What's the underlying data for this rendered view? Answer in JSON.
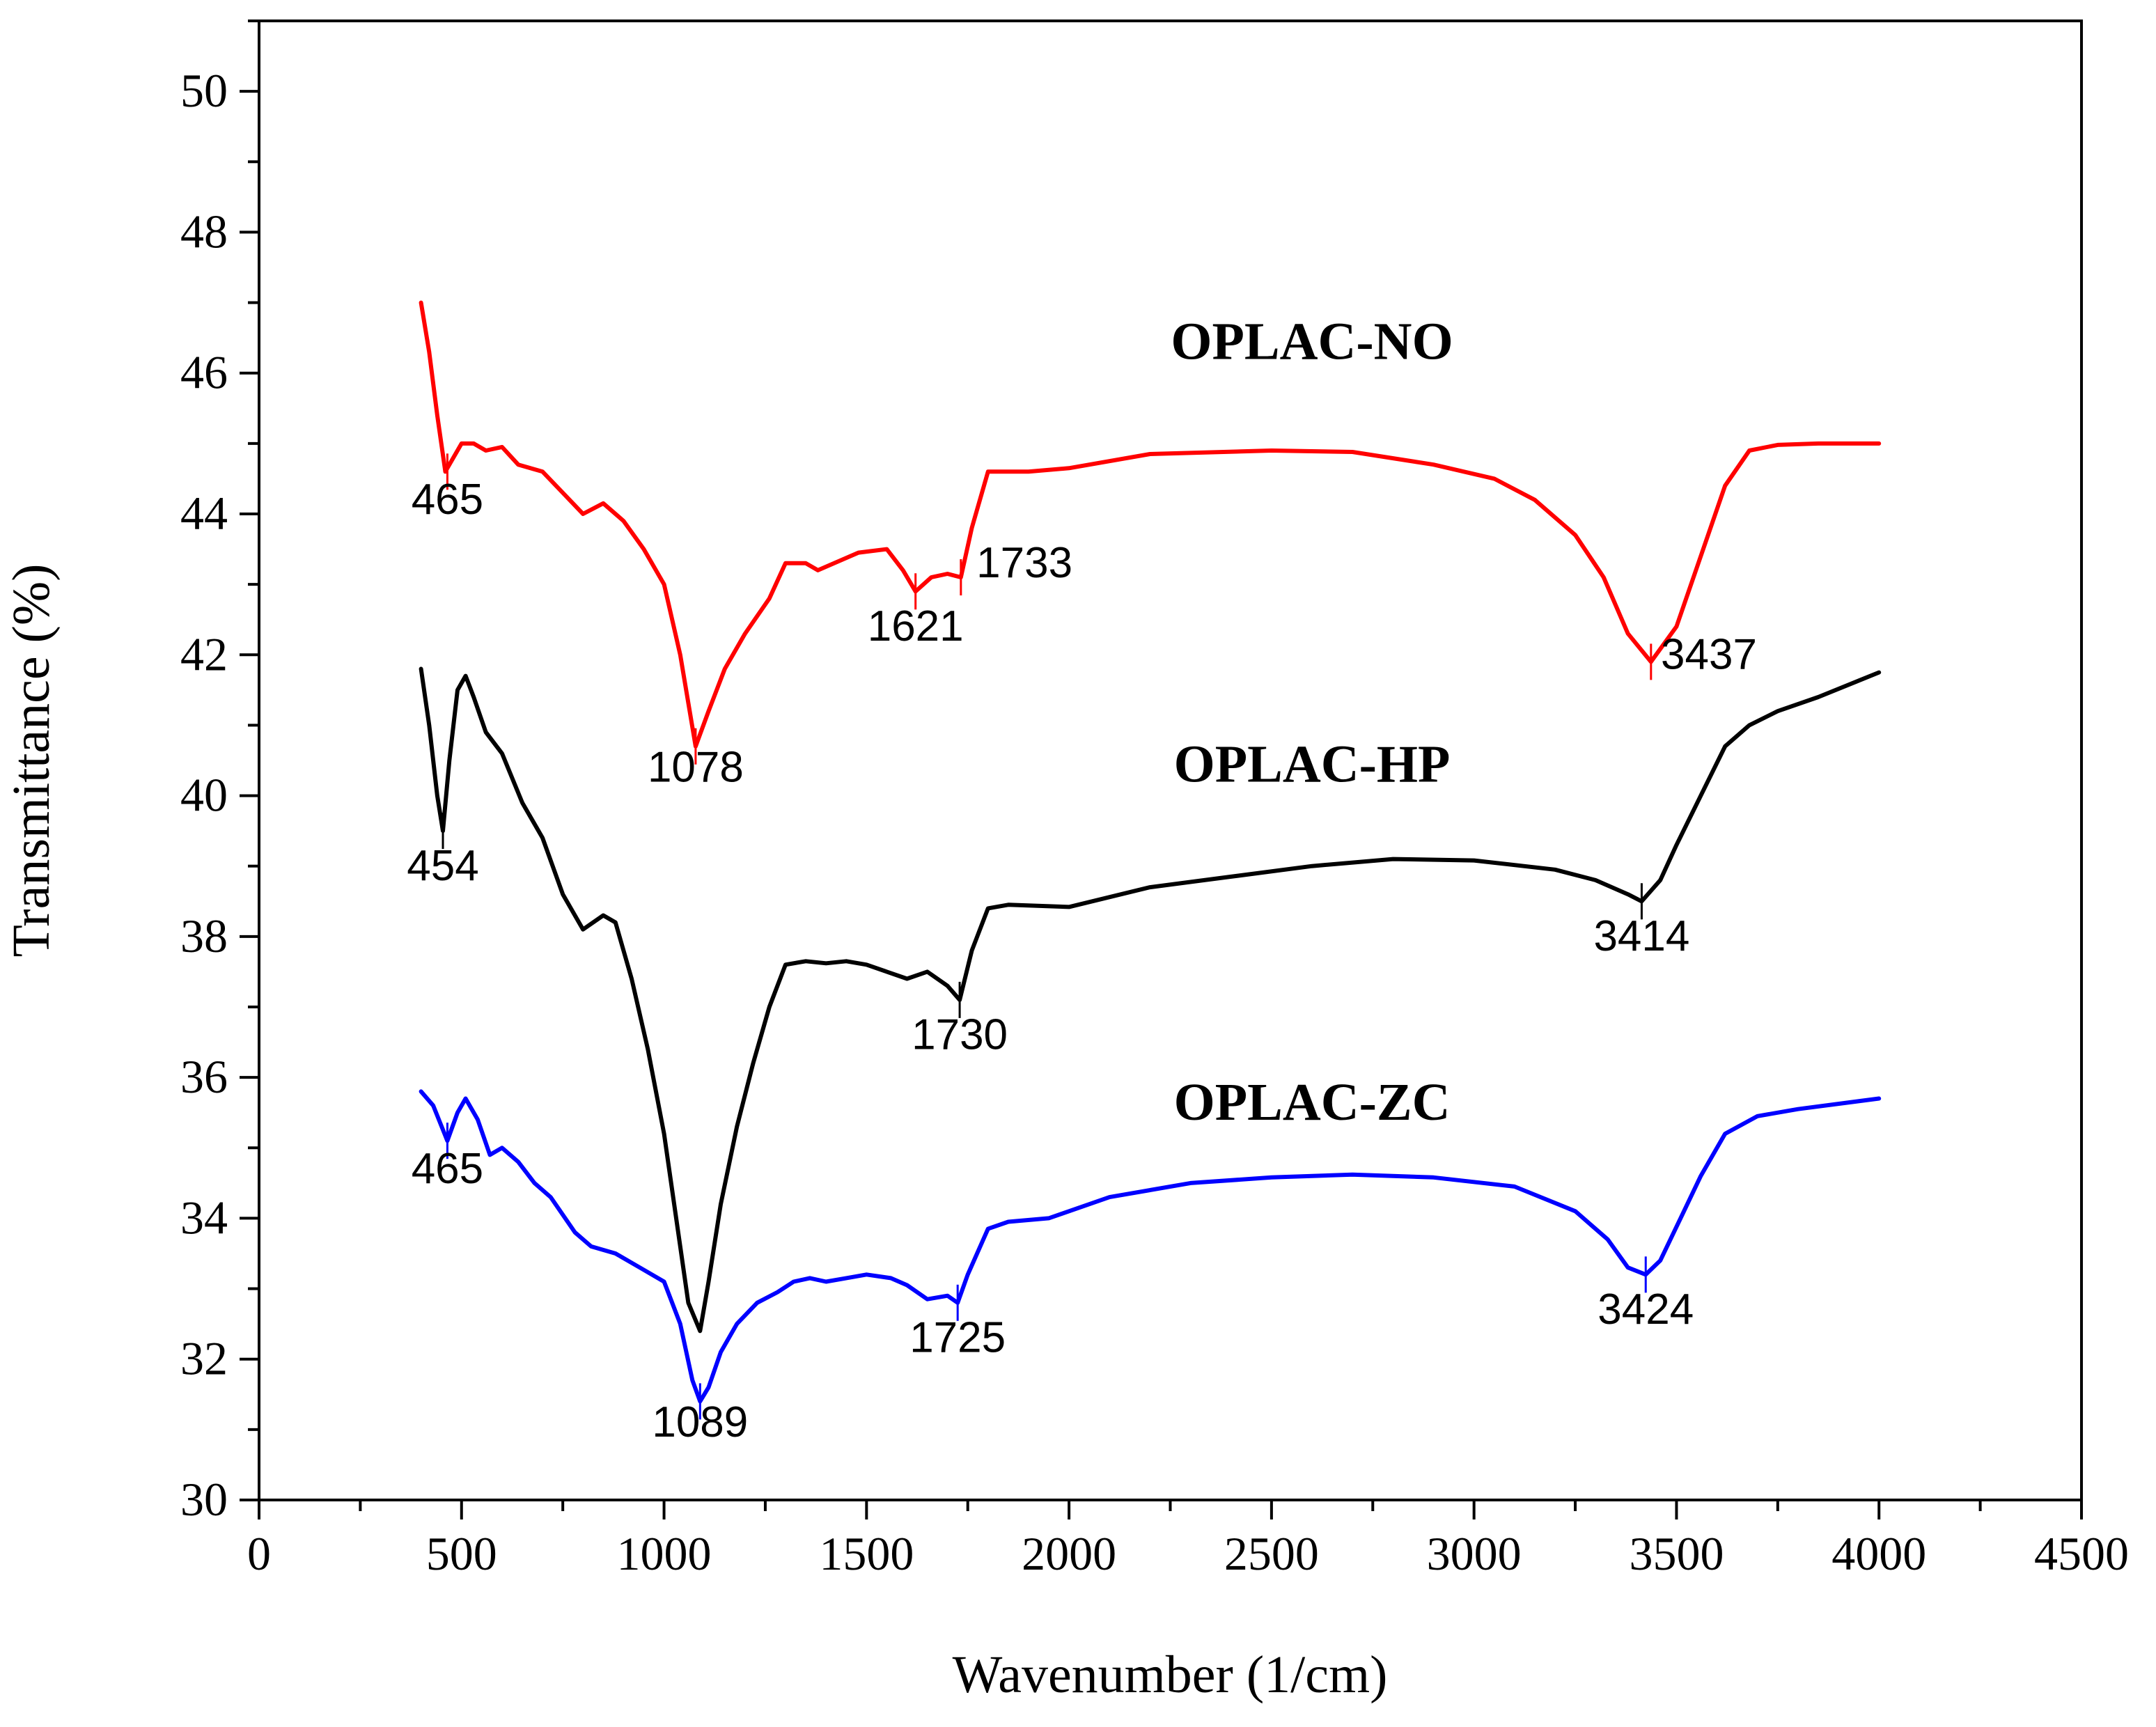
{
  "chart_data": {
    "type": "line",
    "title": "",
    "xlabel": "Wavenumber (1/cm)",
    "ylabel": "Transmittance (%)",
    "xlim": [
      0,
      4500
    ],
    "ylim": [
      30,
      51
    ],
    "xticks": [
      0,
      500,
      1000,
      1500,
      2000,
      2500,
      3000,
      3500,
      4000,
      4500
    ],
    "yticks": [
      30,
      32,
      34,
      36,
      38,
      40,
      42,
      44,
      46,
      48,
      50
    ],
    "grid": false,
    "series": [
      {
        "name": "OPLAC-NO",
        "color": "#ff0000",
        "label_pos": [
          2600,
          46.2
        ],
        "x": [
          400,
          420,
          440,
          460,
          480,
          500,
          530,
          560,
          600,
          640,
          700,
          750,
          800,
          850,
          900,
          950,
          1000,
          1040,
          1078,
          1110,
          1150,
          1200,
          1260,
          1300,
          1350,
          1380,
          1420,
          1480,
          1550,
          1590,
          1621,
          1660,
          1700,
          1733,
          1760,
          1800,
          1900,
          2000,
          2200,
          2500,
          2700,
          2900,
          3050,
          3150,
          3250,
          3320,
          3380,
          3437,
          3500,
          3560,
          3620,
          3680,
          3750,
          3850,
          4000
        ],
        "y": [
          47.0,
          46.3,
          45.4,
          44.6,
          44.8,
          45.0,
          45.0,
          44.9,
          44.95,
          44.7,
          44.6,
          44.3,
          44.0,
          44.15,
          43.9,
          43.5,
          43.0,
          42.0,
          40.7,
          41.2,
          41.8,
          42.3,
          42.8,
          43.3,
          43.3,
          43.2,
          43.3,
          43.45,
          43.5,
          43.2,
          42.9,
          43.1,
          43.15,
          43.1,
          43.8,
          44.6,
          44.6,
          44.65,
          44.85,
          44.9,
          44.88,
          44.7,
          44.5,
          44.2,
          43.7,
          43.1,
          42.3,
          41.9,
          42.4,
          43.4,
          44.4,
          44.9,
          44.98,
          45.0,
          45.0
        ]
      },
      {
        "name": "OPLAC-HP",
        "color": "#000000",
        "label_pos": [
          2600,
          40.2
        ],
        "x": [
          400,
          420,
          440,
          454,
          470,
          490,
          510,
          530,
          560,
          600,
          650,
          700,
          750,
          800,
          850,
          880,
          920,
          960,
          1000,
          1030,
          1060,
          1089,
          1110,
          1140,
          1180,
          1220,
          1260,
          1300,
          1350,
          1400,
          1450,
          1500,
          1550,
          1600,
          1650,
          1700,
          1730,
          1760,
          1800,
          1850,
          2000,
          2200,
          2400,
          2600,
          2800,
          3000,
          3200,
          3300,
          3380,
          3414,
          3460,
          3500,
          3560,
          3620,
          3680,
          3750,
          3850,
          4000
        ],
        "y": [
          41.8,
          41.0,
          40.0,
          39.5,
          40.5,
          41.5,
          41.7,
          41.4,
          40.9,
          40.6,
          39.9,
          39.4,
          38.6,
          38.1,
          38.3,
          38.2,
          37.4,
          36.4,
          35.2,
          34.0,
          32.8,
          32.4,
          33.1,
          34.2,
          35.3,
          36.2,
          37.0,
          37.6,
          37.65,
          37.62,
          37.65,
          37.6,
          37.5,
          37.4,
          37.5,
          37.3,
          37.1,
          37.8,
          38.4,
          38.45,
          38.42,
          38.7,
          38.85,
          39.0,
          39.1,
          39.08,
          38.95,
          38.8,
          38.6,
          38.5,
          38.8,
          39.3,
          40.0,
          40.7,
          41.0,
          41.2,
          41.4,
          41.75
        ]
      },
      {
        "name": "OPLAC-ZC",
        "color": "#0000ff",
        "label_pos": [
          2600,
          35.4
        ],
        "x": [
          400,
          430,
          465,
          490,
          510,
          540,
          570,
          600,
          640,
          680,
          720,
          780,
          820,
          880,
          940,
          1000,
          1040,
          1070,
          1089,
          1110,
          1140,
          1180,
          1230,
          1280,
          1320,
          1360,
          1400,
          1450,
          1500,
          1560,
          1600,
          1650,
          1700,
          1725,
          1750,
          1800,
          1850,
          1950,
          2100,
          2300,
          2500,
          2700,
          2900,
          3100,
          3250,
          3330,
          3380,
          3424,
          3460,
          3510,
          3560,
          3620,
          3700,
          3800,
          4000
        ],
        "y": [
          35.8,
          35.6,
          35.1,
          35.5,
          35.7,
          35.4,
          34.9,
          35.0,
          34.8,
          34.5,
          34.3,
          33.8,
          33.6,
          33.5,
          33.3,
          33.1,
          32.5,
          31.7,
          31.4,
          31.6,
          32.1,
          32.5,
          32.8,
          32.95,
          33.1,
          33.15,
          33.1,
          33.15,
          33.2,
          33.15,
          33.05,
          32.85,
          32.9,
          32.8,
          33.2,
          33.85,
          33.95,
          34.0,
          34.3,
          34.5,
          34.58,
          34.62,
          34.58,
          34.45,
          34.1,
          33.7,
          33.3,
          33.2,
          33.4,
          34.0,
          34.6,
          35.2,
          35.45,
          35.55,
          35.7
        ]
      }
    ],
    "peaks": [
      {
        "label": "465",
        "series": "OPLAC-NO",
        "x": 465,
        "y": 44.6,
        "label_pos": [
          465,
          44.0
        ]
      },
      {
        "label": "1078",
        "series": "OPLAC-NO",
        "x": 1078,
        "y": 40.7,
        "label_pos": [
          1078,
          40.2
        ]
      },
      {
        "label": "1621",
        "series": "OPLAC-NO",
        "x": 1621,
        "y": 42.9,
        "label_pos": [
          1621,
          42.2
        ]
      },
      {
        "label": "1733",
        "series": "OPLAC-NO",
        "x": 1733,
        "y": 43.1,
        "label_pos": [
          1890,
          43.1
        ]
      },
      {
        "label": "3437",
        "series": "OPLAC-NO",
        "x": 3437,
        "y": 41.9,
        "label_pos": [
          3580,
          41.8
        ]
      },
      {
        "label": "454",
        "series": "OPLAC-HP",
        "x": 454,
        "y": 39.5,
        "label_pos": [
          454,
          38.8
        ]
      },
      {
        "label": "1730",
        "series": "OPLAC-HP",
        "x": 1730,
        "y": 37.1,
        "label_pos": [
          1730,
          36.4
        ]
      },
      {
        "label": "3414",
        "series": "OPLAC-HP",
        "x": 3414,
        "y": 38.5,
        "label_pos": [
          3414,
          37.8
        ]
      },
      {
        "label": "465",
        "series": "OPLAC-ZC",
        "x": 465,
        "y": 35.1,
        "label_pos": [
          465,
          34.5
        ]
      },
      {
        "label": "1089",
        "series": "OPLAC-ZC",
        "x": 1089,
        "y": 31.4,
        "label_pos": [
          1089,
          30.9
        ]
      },
      {
        "label": "1725",
        "series": "OPLAC-ZC",
        "x": 1725,
        "y": 32.8,
        "label_pos": [
          1725,
          32.1
        ]
      },
      {
        "label": "3424",
        "series": "OPLAC-ZC",
        "x": 3424,
        "y": 33.2,
        "label_pos": [
          3424,
          32.5
        ]
      }
    ]
  }
}
